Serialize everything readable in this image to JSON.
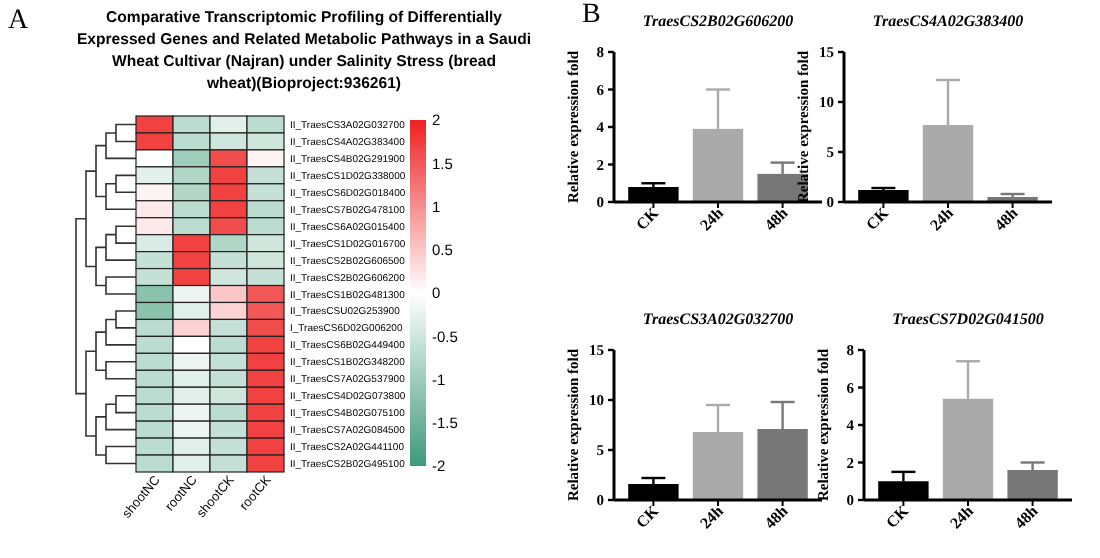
{
  "chart_data": [
    {
      "type": "heatmap",
      "title": "Comparative Transcriptomic Profiling of Differentially Expressed Genes and Related Metabolic Pathways in a Saudi Wheat Cultivar (Najran) under Salinity Stress (bread wheat)(Bioproject:936261)",
      "annotations": [
        "A"
      ],
      "categories": [
        "shootNC",
        "rootNC",
        "shootCK",
        "rootCK"
      ],
      "y_categories": [
        "II_TraesCS3A02G032700",
        "II_TraesCS4A02G383400",
        "II_TraesCS4B02G291900",
        "II_TraesCS1D02G338000",
        "II_TraesCS6D02G018400",
        "II_TraesCS7B02G478100",
        "II_TraesCS6A02G015400",
        "II_TraesCS1D02G016700",
        "II_TraesCS2B02G606500",
        "II_TraesCS2B02G606200",
        "II_TraesCS1B02G481300",
        "II_TraesCSU02G253900",
        "I_TraesCS6D02G006200",
        "II_TraesCS6B02G449400",
        "II_TraesCS1B02G348200",
        "II_TraesCS7A02G537900",
        "II_TraesCS4D02G073800",
        "II_TraesCS4B02G075100",
        "II_TraesCS7A02G084500",
        "II_TraesCS2A02G441100",
        "II_TraesCS2B02G495100"
      ],
      "cells": [
        [
          1.7,
          -0.7,
          -0.3,
          -0.7
        ],
        [
          1.7,
          -0.7,
          -0.5,
          -0.5
        ],
        [
          0,
          -1,
          1.6,
          0.1
        ],
        [
          -0.3,
          -0.8,
          1.7,
          -0.6
        ],
        [
          0.1,
          -0.8,
          1.7,
          -0.6
        ],
        [
          0.2,
          -0.7,
          1.7,
          -0.7
        ],
        [
          0.2,
          -0.7,
          1.6,
          -0.7
        ],
        [
          -0.4,
          1.7,
          -0.8,
          -0.5
        ],
        [
          -0.6,
          1.7,
          -0.6,
          -0.5
        ],
        [
          -0.6,
          1.7,
          -0.5,
          -0.6
        ],
        [
          -1.2,
          -0.2,
          0.5,
          1.5
        ],
        [
          -1.2,
          -0.3,
          0.4,
          1.5
        ],
        [
          -0.7,
          0.4,
          -0.6,
          1.6
        ],
        [
          -0.7,
          0,
          -0.7,
          1.7
        ],
        [
          -0.7,
          -0.2,
          -0.6,
          1.7
        ],
        [
          -0.7,
          -0.3,
          -0.6,
          1.7
        ],
        [
          -0.7,
          -0.3,
          -0.5,
          1.7
        ],
        [
          -0.7,
          -0.2,
          -0.7,
          1.7
        ],
        [
          -0.7,
          -0.2,
          -0.6,
          1.7
        ],
        [
          -0.7,
          -0.3,
          -0.6,
          1.7
        ],
        [
          -0.7,
          -0.3,
          -0.6,
          1.7
        ]
      ],
      "clim": [
        -2,
        2
      ],
      "cticks": [
        -2,
        -1.5,
        -1,
        -0.5,
        0,
        0.5,
        1,
        1.5,
        2
      ]
    },
    {
      "type": "bar",
      "title": "TraesCS2B02G606200",
      "annotations": [
        "B"
      ],
      "ylabel": "Relative expression fold",
      "categories": [
        "CK",
        "24h",
        "48h"
      ],
      "values": [
        0.8,
        3.9,
        1.5
      ],
      "colors": [
        "#000000",
        "#aaaaaa",
        "#777777"
      ],
      "errors": [
        [
          0.8,
          1.0
        ],
        [
          3.9,
          6.0
        ],
        [
          1.5,
          2.1
        ]
      ],
      "ylim": [
        0,
        8
      ],
      "yticks": [
        0,
        2,
        4,
        6,
        8
      ]
    },
    {
      "type": "bar",
      "title": "TraesCS4A02G383400",
      "ylabel": "Relative expression fold",
      "categories": [
        "CK",
        "24h",
        "48h"
      ],
      "values": [
        1.2,
        7.7,
        0.5
      ],
      "colors": [
        "#000000",
        "#aaaaaa",
        "#777777"
      ],
      "errors": [
        [
          1.2,
          1.4
        ],
        [
          7.7,
          12.2
        ],
        [
          0.5,
          0.8
        ]
      ],
      "ylim": [
        0,
        15
      ],
      "yticks": [
        0,
        5,
        10,
        15
      ]
    },
    {
      "type": "bar",
      "title": "TraesCS3A02G032700",
      "ylabel": "Relative expression fold",
      "categories": [
        "CK",
        "24h",
        "48h"
      ],
      "values": [
        1.6,
        6.8,
        7.1
      ],
      "colors": [
        "#000000",
        "#aaaaaa",
        "#777777"
      ],
      "errors": [
        [
          1.6,
          2.2
        ],
        [
          6.8,
          9.5
        ],
        [
          7.1,
          9.8
        ]
      ],
      "ylim": [
        0,
        15
      ],
      "yticks": [
        0,
        5,
        10,
        15
      ]
    },
    {
      "type": "bar",
      "title": "TraesCS7D02G041500",
      "ylabel": "Relative expression fold",
      "categories": [
        "CK",
        "24h",
        "48h"
      ],
      "values": [
        1.0,
        5.4,
        1.6
      ],
      "colors": [
        "#000000",
        "#aaaaaa",
        "#777777"
      ],
      "errors": [
        [
          1.0,
          1.5
        ],
        [
          5.4,
          7.4
        ],
        [
          1.6,
          2.0
        ]
      ],
      "ylim": [
        0,
        8
      ],
      "yticks": [
        0,
        2,
        4,
        6,
        8
      ]
    }
  ]
}
